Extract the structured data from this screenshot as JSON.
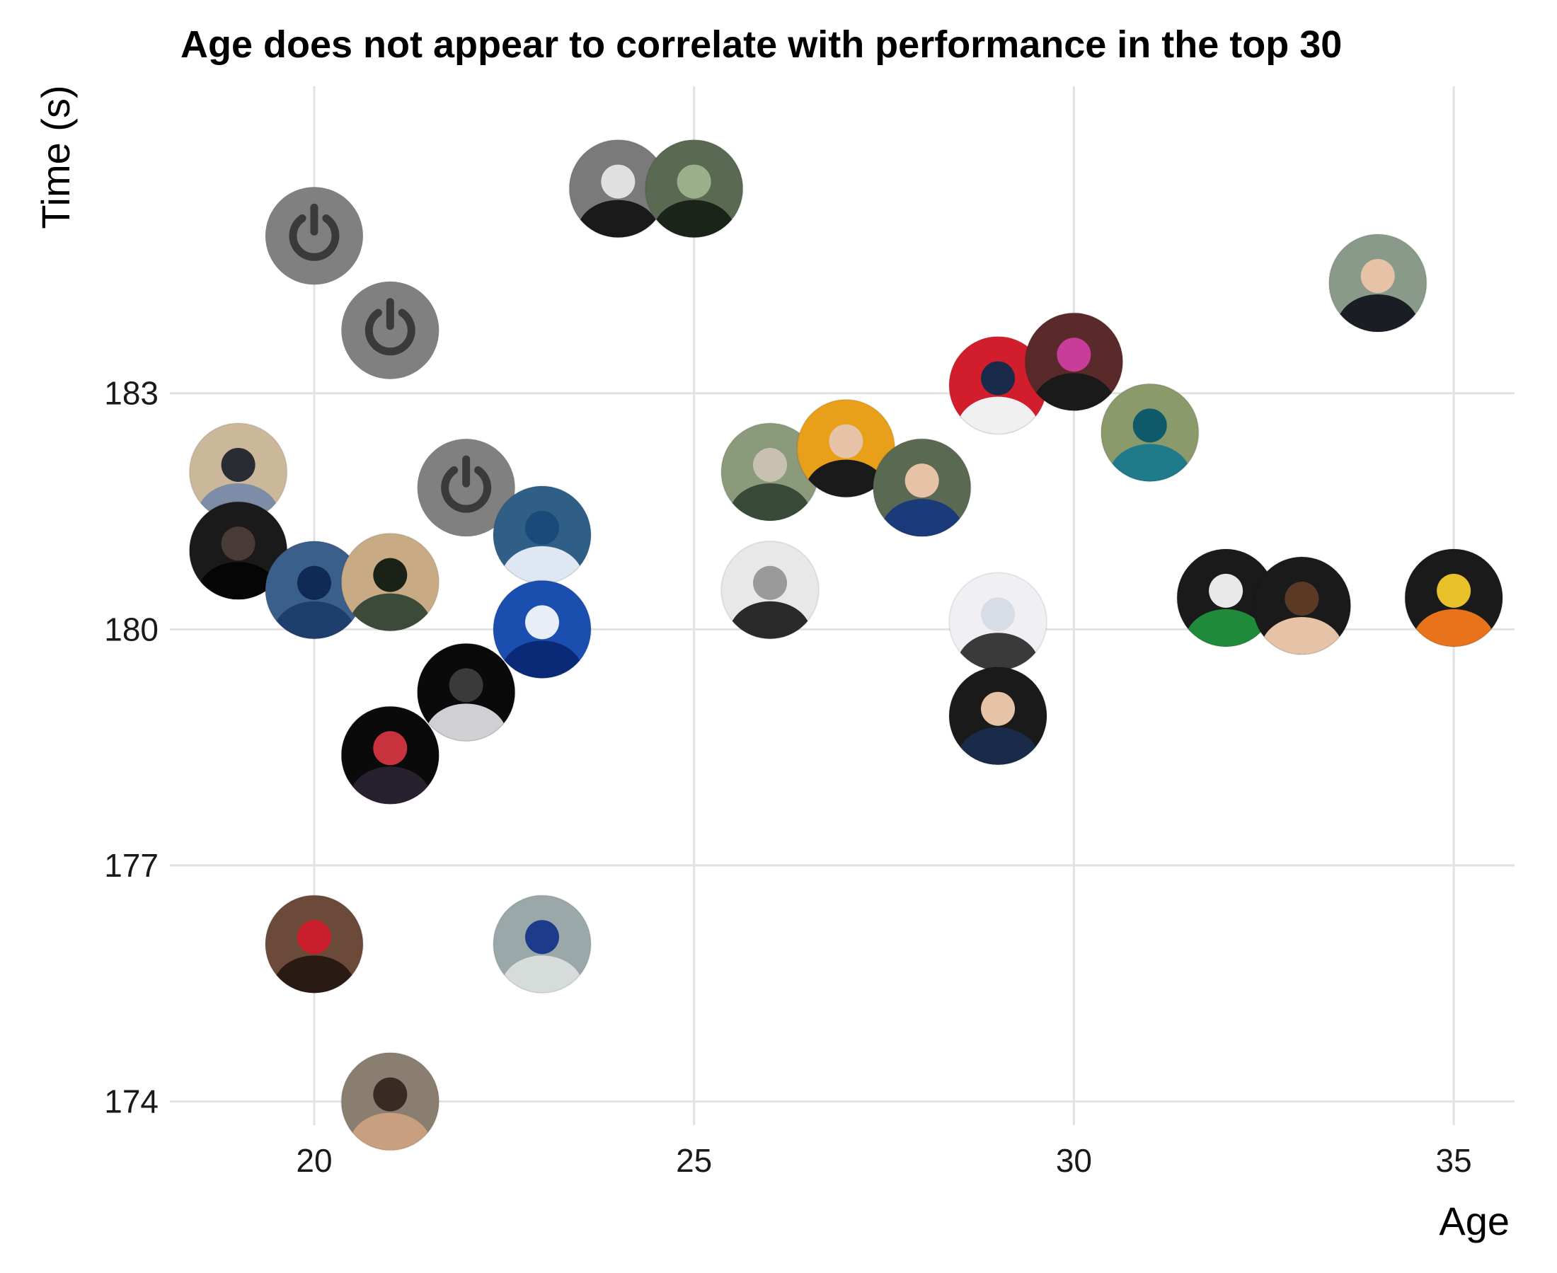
{
  "chart_data": {
    "type": "scatter",
    "title": "Age does not appear to correlate with performance in the top 30",
    "xlabel": "Age",
    "ylabel": "Time (s)",
    "xlim": [
      18.1,
      35.8
    ],
    "ylim": [
      173.7,
      186.9
    ],
    "x_ticks": [
      "20",
      "25",
      "30",
      "35"
    ],
    "y_ticks": [
      "174",
      "177",
      "180",
      "183"
    ],
    "grid": true,
    "legend": "none",
    "marker": "circular rider photo",
    "series": [
      {
        "points": [
          {
            "x": 19,
            "y": 182.0,
            "style": "photo",
            "colors": [
              "#cbb79a",
              "#7d8da8",
              "#2b2b33"
            ]
          },
          {
            "x": 19,
            "y": 181.0,
            "style": "photo",
            "colors": [
              "#1a1a1a",
              "#050505",
              "#4a3a3a"
            ]
          },
          {
            "x": 20,
            "y": 185.0,
            "style": "placeholder",
            "colors": [
              "#808080",
              "#3a3a3a",
              "#3a3a3a"
            ]
          },
          {
            "x": 20,
            "y": 180.5,
            "style": "photo",
            "colors": [
              "#3a5f8a",
              "#1e3e6e",
              "#0e2a55"
            ]
          },
          {
            "x": 20,
            "y": 176.0,
            "style": "photo",
            "colors": [
              "#6b4a3a",
              "#2a1a14",
              "#c81e2c"
            ]
          },
          {
            "x": 21,
            "y": 183.8,
            "style": "placeholder",
            "colors": [
              "#808080",
              "#3a3a3a",
              "#3a3a3a"
            ]
          },
          {
            "x": 21,
            "y": 180.6,
            "style": "photo",
            "colors": [
              "#c8ab84",
              "#3c4a3a",
              "#1a2218"
            ]
          },
          {
            "x": 21,
            "y": 178.4,
            "style": "photo",
            "colors": [
              "#0a0a0a",
              "#27202e",
              "#c8323c"
            ]
          },
          {
            "x": 21,
            "y": 174.0,
            "style": "photo",
            "colors": [
              "#8a7e70",
              "#c8a080",
              "#3a2a24"
            ]
          },
          {
            "x": 22,
            "y": 181.8,
            "style": "placeholder",
            "colors": [
              "#808080",
              "#3a3a3a",
              "#3a3a3a"
            ]
          },
          {
            "x": 22,
            "y": 179.2,
            "style": "photo",
            "colors": [
              "#0a0a0a",
              "#cfcfd4",
              "#3a3a3a"
            ]
          },
          {
            "x": 23,
            "y": 181.2,
            "style": "photo",
            "colors": [
              "#2f5f86",
              "#dfe8f2",
              "#1a4a7a"
            ]
          },
          {
            "x": 23,
            "y": 180.0,
            "style": "photo",
            "colors": [
              "#1a4fb0",
              "#0a2a78",
              "#e8eef8"
            ]
          },
          {
            "x": 23,
            "y": 176.0,
            "style": "photo",
            "colors": [
              "#9aa8aa",
              "#d6dcd9",
              "#1e3a8a"
            ]
          },
          {
            "x": 24,
            "y": 185.6,
            "style": "photo",
            "colors": [
              "#7a7a7a",
              "#1a1a1a",
              "#e0e0e0"
            ]
          },
          {
            "x": 25,
            "y": 185.6,
            "style": "photo",
            "colors": [
              "#5a6a52",
              "#1a2418",
              "#9ab08a"
            ]
          },
          {
            "x": 26,
            "y": 182.0,
            "style": "photo",
            "colors": [
              "#8a9a7a",
              "#3a4a3a",
              "#c8c0b0"
            ]
          },
          {
            "x": 26,
            "y": 180.5,
            "style": "photo",
            "colors": [
              "#e8e8e8",
              "#2a2a2a",
              "#9a9a9a"
            ]
          },
          {
            "x": 27,
            "y": 182.3,
            "style": "photo",
            "colors": [
              "#e8a01a",
              "#1a1a1a",
              "#e6c2a6"
            ]
          },
          {
            "x": 28,
            "y": 181.8,
            "style": "photo",
            "colors": [
              "#5a6a52",
              "#1a3a7a",
              "#e6c2a6"
            ]
          },
          {
            "x": 29,
            "y": 183.1,
            "style": "photo",
            "colors": [
              "#d21e2c",
              "#f0f0f0",
              "#1a2a4a"
            ]
          },
          {
            "x": 29,
            "y": 180.1,
            "style": "photo",
            "colors": [
              "#f0f0f4",
              "#3a3a3a",
              "#d8dce4"
            ]
          },
          {
            "x": 29,
            "y": 178.9,
            "style": "photo",
            "colors": [
              "#1a1a1a",
              "#1a2a4a",
              "#e6c2a6"
            ]
          },
          {
            "x": 30,
            "y": 183.4,
            "style": "photo",
            "colors": [
              "#5a2a2a",
              "#1a1a1a",
              "#c83c9a"
            ]
          },
          {
            "x": 31,
            "y": 182.5,
            "style": "photo",
            "colors": [
              "#8a9a6a",
              "#1f7a8a",
              "#0e5a6a"
            ]
          },
          {
            "x": 32,
            "y": 180.4,
            "style": "photo",
            "colors": [
              "#1a1a1a",
              "#1e8a3a",
              "#e8e8e8"
            ]
          },
          {
            "x": 33,
            "y": 180.3,
            "style": "photo",
            "colors": [
              "#1a1a1a",
              "#e6c2a6",
              "#5a3a24"
            ]
          },
          {
            "x": 34,
            "y": 184.4,
            "style": "photo",
            "colors": [
              "#8a9a8a",
              "#1a1e24",
              "#e6c2a6"
            ]
          },
          {
            "x": 35,
            "y": 180.4,
            "style": "photo",
            "colors": [
              "#1a1a1a",
              "#e8731a",
              "#e8c02a"
            ]
          }
        ]
      }
    ]
  }
}
